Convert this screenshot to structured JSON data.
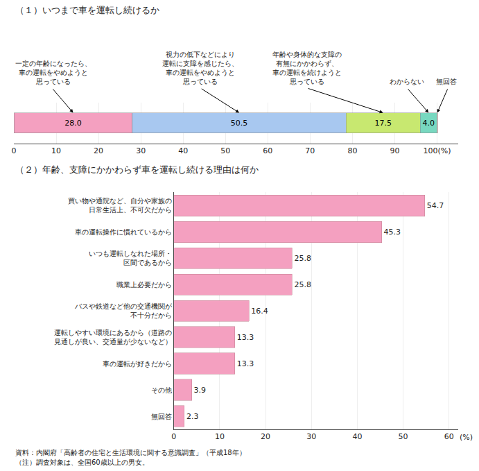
{
  "chart_data": [
    {
      "type": "bar",
      "title": "（１）いつまで車を運転し続けるか",
      "orientation": "horizontal",
      "stacked": true,
      "categories": [
        null
      ],
      "series": [
        {
          "name": "一定の年齢になったら、\n車の運転をやめようと\n思っている",
          "color": "#F4A0C0",
          "values": [
            28.0
          ],
          "value_labels": [
            "28.0"
          ]
        },
        {
          "name": "視力の低下などにより\n運転に支障を感じたら、\n車の運転をやめようと\n思っている",
          "color": "#A8C8F0",
          "values": [
            50.5
          ],
          "value_labels": [
            "50.5"
          ]
        },
        {
          "name": "年齢や身体的な支障の\n有無にかかわらず、\n車の運転を続けようと\n思っている",
          "color": "#C8E870",
          "values": [
            17.5
          ],
          "value_labels": [
            "17.5"
          ]
        },
        {
          "name": "わからない",
          "color": "#78D8C0",
          "values": [
            4.0
          ],
          "value_labels": [
            "4.0"
          ]
        },
        {
          "name": "無回答",
          "color": "#E8A0A0",
          "values": [
            0.1
          ],
          "value_labels": [
            null
          ]
        }
      ],
      "data_labels": true,
      "xlim": [
        0,
        105
      ],
      "xticks": [
        0,
        10,
        20,
        30,
        40,
        50,
        60,
        70,
        80,
        90,
        {
          "value": 100,
          "label": "100(%)"
        }
      ],
      "grid": true,
      "tick_labels": "x"
    },
    {
      "type": "bar",
      "title": "（２）年齢、支障にかかわらず車を運転し続ける理由は何か",
      "orientation": "horizontal",
      "categories": [
        "買い物や通院など、自分や家族の\n日常生活上、不可欠だから",
        "車の運転操作に慣れているから",
        "いつも運転しなれた場所・\n区間であるから",
        "職業上必要だから",
        "バスや鉄道など他の交通機関が\n不十分だから",
        "運転しやすい環境にあるから（道路の\n見通しが良い、交通量が少ないなど）",
        "車の運転が好きだから",
        "その他",
        "無回答"
      ],
      "values": [
        54.7,
        45.3,
        25.8,
        25.8,
        16.4,
        13.3,
        13.3,
        3.9,
        2.3
      ],
      "color": "#F4A0C0",
      "data_labels": true,
      "xlim": [
        0,
        62
      ],
      "xticks": [
        0,
        10,
        20,
        30,
        40,
        50,
        60
      ],
      "xlabel": "(%)",
      "grid": true,
      "annotations": [
        "資料：内閣府「高齢者の住宅と生活環境に関する意識調査」（平成18年）",
        "（注）調査対象は、全国60歳以上の男女。"
      ]
    }
  ]
}
